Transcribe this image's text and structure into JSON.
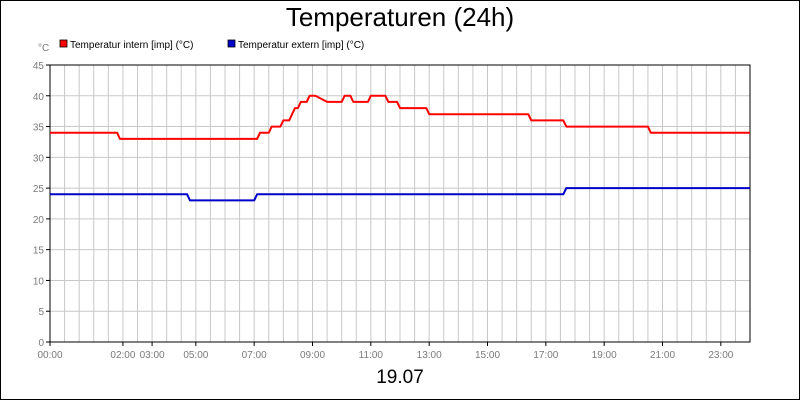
{
  "chart_data": {
    "type": "line",
    "title": "Temperaturen (24h)",
    "xlabel": "19.07",
    "ylabel": "°C",
    "ylim": [
      0,
      45
    ],
    "yticks": [
      0,
      5,
      10,
      15,
      20,
      25,
      30,
      35,
      40,
      45
    ],
    "xlim": [
      0,
      24
    ],
    "x_ticks": [
      {
        "x": 0,
        "label": "00:00"
      },
      {
        "x": 2.5,
        "label": "02:00"
      },
      {
        "x": 3.5,
        "label": "03:00"
      },
      {
        "x": 5,
        "label": "05:00"
      },
      {
        "x": 7,
        "label": "07:00"
      },
      {
        "x": 9,
        "label": "09:00"
      },
      {
        "x": 11,
        "label": "11:00"
      },
      {
        "x": 13,
        "label": "13:00"
      },
      {
        "x": 15,
        "label": "15:00"
      },
      {
        "x": 17,
        "label": "17:00"
      },
      {
        "x": 19,
        "label": "19:00"
      },
      {
        "x": 21,
        "label": "21:00"
      },
      {
        "x": 23,
        "label": "23:00"
      }
    ],
    "grid": true,
    "legend_position": "top-left",
    "series": [
      {
        "name": "Temperatur intern [imp] (°C)",
        "color": "#ff0000",
        "points": [
          [
            0,
            34
          ],
          [
            2.3,
            34
          ],
          [
            2.4,
            33
          ],
          [
            7.1,
            33
          ],
          [
            7.2,
            34
          ],
          [
            7.5,
            34
          ],
          [
            7.6,
            35
          ],
          [
            7.9,
            35
          ],
          [
            8.0,
            36
          ],
          [
            8.2,
            36
          ],
          [
            8.3,
            37
          ],
          [
            8.4,
            38
          ],
          [
            8.5,
            38
          ],
          [
            8.6,
            39
          ],
          [
            8.8,
            39
          ],
          [
            8.9,
            40
          ],
          [
            9.1,
            40
          ],
          [
            9.5,
            39
          ],
          [
            10.0,
            39
          ],
          [
            10.1,
            40
          ],
          [
            10.3,
            40
          ],
          [
            10.4,
            39
          ],
          [
            10.9,
            39
          ],
          [
            11.0,
            40
          ],
          [
            11.5,
            40
          ],
          [
            11.6,
            39
          ],
          [
            11.9,
            39
          ],
          [
            12.0,
            38
          ],
          [
            12.9,
            38
          ],
          [
            13.0,
            37
          ],
          [
            16.4,
            37
          ],
          [
            16.5,
            36
          ],
          [
            17.6,
            36
          ],
          [
            17.7,
            35
          ],
          [
            20.5,
            35
          ],
          [
            20.6,
            34
          ],
          [
            24,
            34
          ]
        ]
      },
      {
        "name": "Temperatur extern [imp] (°C)",
        "color": "#0000cc",
        "points": [
          [
            0,
            24
          ],
          [
            4.7,
            24
          ],
          [
            4.8,
            23
          ],
          [
            7.0,
            23
          ],
          [
            7.1,
            24
          ],
          [
            17.6,
            24
          ],
          [
            17.7,
            25
          ],
          [
            24,
            25
          ]
        ]
      }
    ]
  }
}
